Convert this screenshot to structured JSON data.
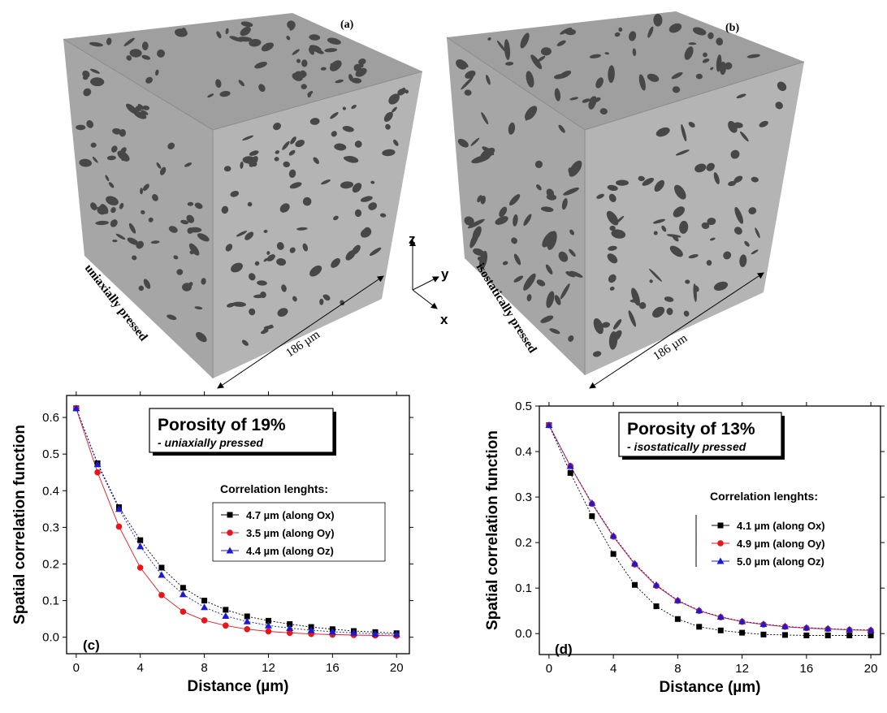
{
  "panels": {
    "a": {
      "letter": "(a)",
      "process_label": "uniaxially pressed",
      "size_label": "186 µm"
    },
    "b": {
      "letter": "(b)",
      "process_label": "isostatically pressed",
      "size_label": "186 µm"
    },
    "axes_triad": {
      "z": "z",
      "y": "y",
      "x": "x"
    }
  },
  "colors": {
    "cube_front": "#a6a6a6",
    "cube_side": "#b7b7b7",
    "cube_top": "#a1a1a1",
    "pore": "#4a4a4a",
    "ox": "#000000",
    "oy": "#e8161b",
    "oz": "#1a1ad6"
  },
  "chart_data": [
    {
      "type": "scatter",
      "panel_label": "(c)",
      "title": "Porosity of 19%",
      "subtitle": "- uniaxially pressed",
      "xlabel": "Distance (µm)",
      "ylabel": "Spatial correlation function",
      "xlim": [
        -0.6,
        20.8
      ],
      "ylim": [
        -0.045,
        0.66
      ],
      "xticks": [
        0,
        4,
        8,
        12,
        16,
        20
      ],
      "yticks": [
        0.0,
        0.1,
        0.2,
        0.3,
        0.4,
        0.5,
        0.6
      ],
      "y_decimals": 1,
      "legend_title": "Correlation lenghts:",
      "legend_position": "center-right",
      "x": [
        0,
        1.33,
        2.67,
        4,
        5.33,
        6.67,
        8,
        9.33,
        10.67,
        12,
        13.33,
        14.67,
        16,
        17.33,
        18.67,
        20
      ],
      "series": [
        {
          "name": "4.7 µm (along Ox)",
          "marker": "square",
          "color": "#000000",
          "values": [
            0.625,
            0.475,
            0.355,
            0.265,
            0.19,
            0.135,
            0.1,
            0.075,
            0.057,
            0.045,
            0.036,
            0.028,
            0.022,
            0.017,
            0.014,
            0.011
          ]
        },
        {
          "name": "3.5 µm (along Oy)",
          "marker": "circle",
          "color": "#e8161b",
          "values": [
            0.625,
            0.45,
            0.302,
            0.19,
            0.115,
            0.07,
            0.046,
            0.032,
            0.022,
            0.016,
            0.012,
            0.009,
            0.007,
            0.006,
            0.005,
            0.004
          ]
        },
        {
          "name": "4.4 µm (along Oz)",
          "marker": "triangle",
          "color": "#1a1ad6",
          "values": [
            0.625,
            0.472,
            0.35,
            0.248,
            0.17,
            0.117,
            0.082,
            0.058,
            0.043,
            0.032,
            0.025,
            0.019,
            0.015,
            0.012,
            0.009,
            0.008
          ]
        }
      ]
    },
    {
      "type": "scatter",
      "panel_label": "(d)",
      "title": "Porosity of 13%",
      "subtitle": "- isostatically pressed",
      "xlabel": "Distance (µm)",
      "ylabel": "Spatial correlation function",
      "xlim": [
        -0.6,
        20.6
      ],
      "ylim": [
        -0.046,
        0.5
      ],
      "xticks": [
        0,
        4,
        8,
        12,
        16,
        20
      ],
      "yticks": [
        0.0,
        0.1,
        0.2,
        0.3,
        0.4,
        0.5
      ],
      "y_decimals": 1,
      "legend_title": "Correlation lenghts:",
      "legend_position": "center-right",
      "x": [
        0,
        1.33,
        2.67,
        4,
        5.33,
        6.67,
        8,
        9.33,
        10.67,
        12,
        13.33,
        14.67,
        16,
        17.33,
        18.67,
        20
      ],
      "series": [
        {
          "name": "4.1 µm (along Ox)",
          "marker": "square",
          "color": "#000000",
          "values": [
            0.458,
            0.353,
            0.258,
            0.175,
            0.107,
            0.06,
            0.032,
            0.015,
            0.007,
            0.002,
            -0.002,
            -0.003,
            -0.004,
            -0.004,
            -0.004,
            -0.004
          ]
        },
        {
          "name": "4.9 µm (along Oy)",
          "marker": "circle",
          "color": "#e8161b",
          "values": [
            0.458,
            0.368,
            0.285,
            0.213,
            0.152,
            0.105,
            0.072,
            0.05,
            0.036,
            0.026,
            0.02,
            0.015,
            0.012,
            0.01,
            0.008,
            0.007
          ]
        },
        {
          "name": "5.0 µm (along Oz)",
          "marker": "triangle",
          "color": "#1a1ad6",
          "values": [
            0.458,
            0.368,
            0.287,
            0.215,
            0.154,
            0.107,
            0.073,
            0.051,
            0.037,
            0.027,
            0.021,
            0.016,
            0.013,
            0.011,
            0.009,
            0.008
          ]
        }
      ]
    }
  ]
}
